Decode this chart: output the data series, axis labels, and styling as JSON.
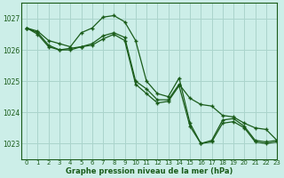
{
  "title": "Graphe pression niveau de la mer (hPa)",
  "bg_color": "#cceee8",
  "grid_color": "#aad4cc",
  "line_color": "#1a5c1a",
  "xlim": [
    -0.5,
    23
  ],
  "ylim": [
    1022.5,
    1027.5
  ],
  "yticks": [
    1023,
    1024,
    1025,
    1026,
    1027
  ],
  "xticks": [
    0,
    1,
    2,
    3,
    4,
    5,
    6,
    7,
    8,
    9,
    10,
    11,
    12,
    13,
    14,
    15,
    16,
    17,
    18,
    19,
    20,
    21,
    22,
    23
  ],
  "line1_x": [
    0,
    1,
    2,
    3,
    4,
    5,
    6,
    7,
    8,
    9,
    10,
    11,
    12,
    13,
    14,
    15,
    16,
    17,
    18,
    19,
    20,
    21,
    22,
    23
  ],
  "line1_y": [
    1026.7,
    1026.6,
    1026.3,
    1026.2,
    1026.1,
    1026.55,
    1026.7,
    1027.05,
    1027.1,
    1026.9,
    1026.3,
    1025.0,
    1024.6,
    1024.5,
    1025.1,
    1023.65,
    1023.0,
    1023.1,
    1023.75,
    1023.8,
    1023.55,
    1023.1,
    1023.05,
    1023.1
  ],
  "line2_x": [
    0,
    1,
    2,
    3,
    4,
    5,
    6,
    7,
    8,
    9,
    10,
    11,
    12,
    13,
    14,
    15,
    16,
    17,
    18,
    19,
    20,
    21,
    22,
    23
  ],
  "line2_y": [
    1026.7,
    1026.55,
    1026.15,
    1026.0,
    1026.0,
    1026.1,
    1026.2,
    1026.45,
    1026.55,
    1026.4,
    1025.0,
    1024.75,
    1024.4,
    1024.4,
    1024.9,
    1024.45,
    1024.25,
    1024.2,
    1023.9,
    1023.85,
    1023.65,
    1023.5,
    1023.45,
    1023.1
  ],
  "line3_x": [
    0,
    1,
    2,
    3,
    4,
    5,
    6,
    7,
    8,
    9,
    10,
    11,
    12,
    13,
    14,
    15,
    16,
    17,
    18,
    19,
    20,
    21,
    22,
    23
  ],
  "line3_y": [
    1026.7,
    1026.5,
    1026.1,
    1026.0,
    1026.05,
    1026.1,
    1026.15,
    1026.35,
    1026.5,
    1026.3,
    1024.9,
    1024.6,
    1024.3,
    1024.35,
    1024.85,
    1023.55,
    1023.0,
    1023.05,
    1023.65,
    1023.7,
    1023.5,
    1023.05,
    1023.0,
    1023.05
  ]
}
